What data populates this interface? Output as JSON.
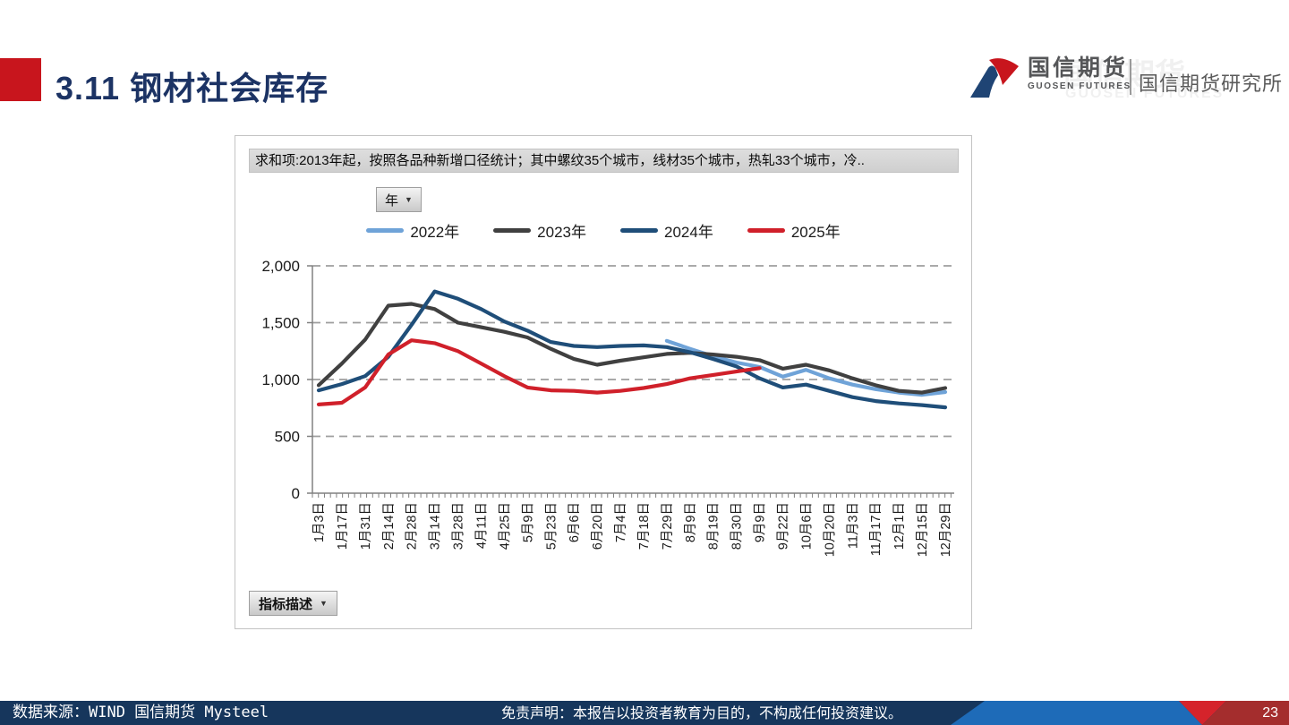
{
  "slide": {
    "title": "3.11 钢材社会库存",
    "page_number": "23"
  },
  "header": {
    "brand": "国信期货",
    "brand_en": "GUOSEN FUTURES",
    "division": "国信期货研究所"
  },
  "chart_panel": {
    "caption": "求和项:2013年起，按照各品种新增口径统计；其中螺纹35个城市，线材35个城市，热轧33个城市，冷..",
    "year_filter_label": "年",
    "indicator_button_label": "指标描述"
  },
  "icons": {
    "dropdown_arrow": "▼"
  },
  "footer": {
    "source": "数据来源：WIND 国信期货 Mysteel",
    "disclaimer": "免责声明：本报告以投资者教育为目的，不构成任何投资建议。"
  },
  "colors": {
    "accent_red": "#C8151D",
    "title_navy": "#1C3364",
    "footer_navy": "#16365C",
    "footer_blue": "#1E6BB8",
    "footer_bright_red": "#D5232B",
    "footer_dark_red": "#A42D2D"
  },
  "chart_data": {
    "type": "line",
    "title": "求和项:2013年起，按照各品种新增口径统计；其中螺纹35个城市，线材35个城市，热轧33个城市，冷..",
    "legend_position": "top",
    "grid": "horizontal-dashed",
    "ylim": [
      0,
      2000
    ],
    "ytick_values": [
      0,
      500,
      1000,
      1500,
      2000
    ],
    "ytick_labels": [
      "0",
      "500",
      "1,000",
      "1,500",
      "2,000"
    ],
    "categories": [
      "1月3日",
      "1月17日",
      "1月31日",
      "2月14日",
      "2月28日",
      "3月14日",
      "3月28日",
      "4月11日",
      "4月25日",
      "5月9日",
      "5月23日",
      "6月6日",
      "6月20日",
      "7月4日",
      "7月18日",
      "7月29日",
      "8月9日",
      "8月19日",
      "8月30日",
      "9月9日",
      "9月22日",
      "10月6日",
      "10月20日",
      "11月3日",
      "11月17日",
      "12月1日",
      "12月15日",
      "12月29日"
    ],
    "series": [
      {
        "name": "2022年",
        "color": "#6FA3D8",
        "values": [
          null,
          null,
          null,
          null,
          null,
          null,
          null,
          null,
          null,
          null,
          null,
          null,
          null,
          null,
          null,
          1340,
          1270,
          1205,
          1150,
          1110,
          1025,
          1085,
          1010,
          955,
          915,
          885,
          865,
          890
        ]
      },
      {
        "name": "2023年",
        "color": "#404040",
        "values": [
          950,
          1140,
          1350,
          1650,
          1665,
          1620,
          1500,
          1460,
          1420,
          1370,
          1270,
          1180,
          1130,
          1165,
          1195,
          1225,
          1235,
          1220,
          1200,
          1170,
          1095,
          1130,
          1080,
          1010,
          950,
          900,
          885,
          925
        ]
      },
      {
        "name": "2024年",
        "color": "#1F4E79",
        "values": [
          905,
          960,
          1030,
          1200,
          1480,
          1775,
          1710,
          1620,
          1510,
          1430,
          1330,
          1295,
          1285,
          1295,
          1300,
          1285,
          1240,
          1180,
          1115,
          1010,
          930,
          955,
          900,
          845,
          810,
          790,
          775,
          755
        ]
      },
      {
        "name": "2025年",
        "color": "#D0202A",
        "values": [
          780,
          795,
          930,
          1220,
          1345,
          1320,
          1250,
          1140,
          1030,
          930,
          905,
          900,
          885,
          900,
          925,
          960,
          1010,
          1040,
          1070,
          1100,
          null,
          null,
          null,
          null,
          null,
          null,
          null,
          null
        ]
      }
    ]
  }
}
